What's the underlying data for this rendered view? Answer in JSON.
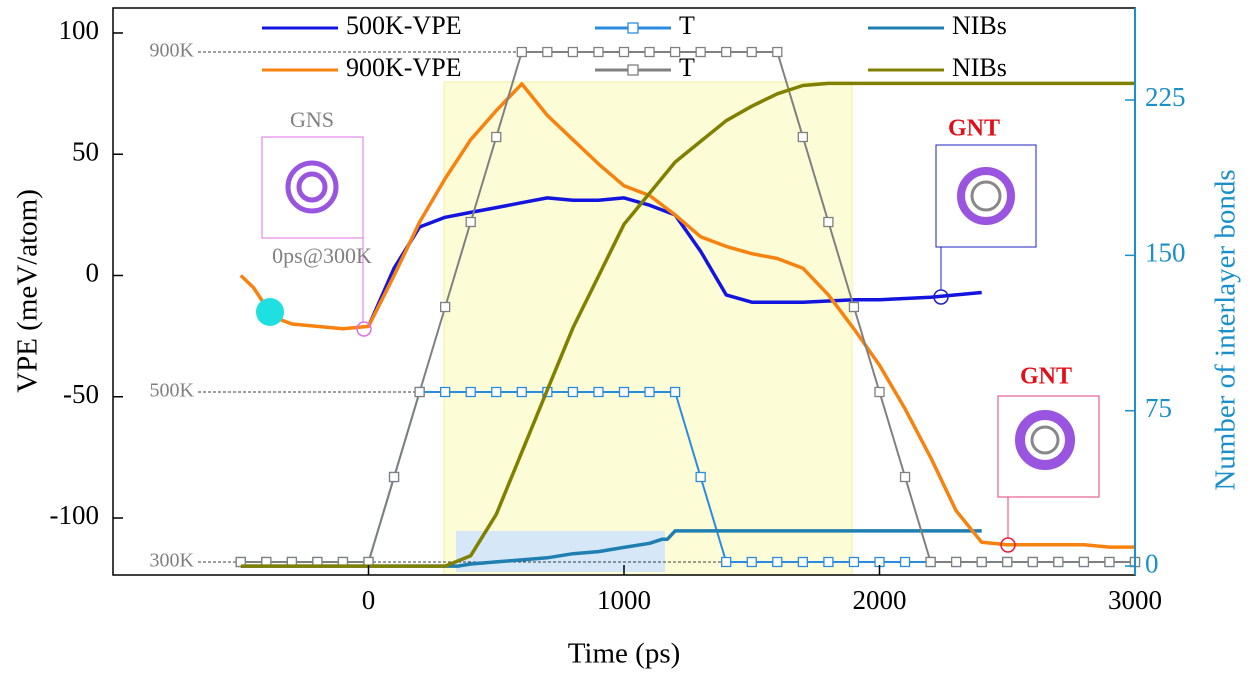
{
  "chart_data": {
    "type": "line",
    "xlabel": "Time (ps)",
    "ylabel": "VPE (meV/atom)",
    "y2label": "Number of interlayer bonds",
    "xlim": [
      -1000,
      3000
    ],
    "xticks": [
      0,
      1000,
      2000,
      3000
    ],
    "ylim": [
      -123.5,
      110.3
    ],
    "yticks": [
      -100,
      -50,
      0,
      50,
      100
    ],
    "y2lim": [
      -4.3,
      269.4
    ],
    "y2ticks": [
      0,
      75,
      150,
      225
    ],
    "y3lim": [
      284.7,
      951.8
    ],
    "y3ticks": [
      {
        "value": 900,
        "label": "900K"
      },
      {
        "value": 500,
        "label": "500K"
      },
      {
        "value": 300,
        "label": "300K"
      }
    ],
    "annotations": [
      "GNS",
      "0ps@300K",
      "GNT",
      "GNT"
    ],
    "series": [
      {
        "name": "500K-VPE",
        "color": "#1414e0",
        "axis": "y",
        "x": [
          0,
          100,
          200,
          300,
          400,
          500,
          600,
          700,
          800,
          900,
          1000,
          1100,
          1200,
          1300,
          1400,
          1500,
          1600,
          1700,
          1800,
          1900,
          2000,
          2100,
          2200,
          2300,
          2400
        ],
        "values": [
          -21,
          3,
          20,
          24,
          26,
          28,
          30,
          32,
          31,
          31,
          32,
          29,
          25,
          10,
          -8,
          -11,
          -11,
          -11,
          -10.5,
          -10,
          -10,
          -9.5,
          -9,
          -8,
          -7
        ]
      },
      {
        "name": "T",
        "color": "#2a8ce0",
        "axis": "y3",
        "markers": true,
        "x": [
          -500,
          -400,
          -300,
          -200,
          -100,
          0,
          100,
          200,
          300,
          400,
          500,
          600,
          700,
          800,
          900,
          1000,
          1100,
          1200,
          1300,
          1400,
          1500,
          1600,
          1700,
          1800,
          1900,
          2000,
          2100,
          2200,
          2300,
          2400,
          2500,
          2600,
          2700,
          2800,
          2900,
          3000
        ],
        "values": [
          300,
          300,
          300,
          300,
          300,
          300,
          400,
          500,
          500,
          500,
          500,
          500,
          500,
          500,
          500,
          500,
          500,
          500,
          400,
          300,
          300,
          300,
          300,
          300,
          300,
          300,
          300,
          300,
          300,
          300,
          300,
          300,
          300,
          300,
          300,
          300
        ]
      },
      {
        "name": "NIBs",
        "color": "#1f7fb0",
        "axis": "y2",
        "x": [
          -500,
          0,
          350,
          400,
          500,
          600,
          700,
          800,
          900,
          1000,
          1100,
          1150,
          1170,
          1200,
          2400
        ],
        "values": [
          0,
          0,
          0,
          1,
          2,
          3,
          4,
          6,
          7,
          9,
          11,
          13,
          13,
          17,
          17
        ]
      },
      {
        "name": "900K-VPE",
        "color": "#f7820f",
        "axis": "y",
        "x": [
          -500,
          -450,
          -400,
          -350,
          -300,
          -200,
          -100,
          0,
          100,
          200,
          300,
          400,
          500,
          600,
          700,
          800,
          900,
          1000,
          1100,
          1200,
          1300,
          1400,
          1500,
          1600,
          1700,
          1800,
          1900,
          2000,
          2100,
          2200,
          2300,
          2400,
          2500,
          2600,
          2700,
          2800,
          2900,
          3000
        ],
        "values": [
          0,
          -5,
          -13,
          -18,
          -20,
          -21,
          -22,
          -21,
          0,
          22,
          40,
          56,
          68,
          79,
          66,
          56,
          46,
          37,
          33,
          25,
          16,
          12,
          9,
          7,
          3,
          -8,
          -22,
          -37,
          -55,
          -75,
          -97,
          -110,
          -111,
          -111,
          -111,
          -111,
          -112,
          -112
        ]
      },
      {
        "name": "T",
        "color": "#808080",
        "axis": "y3",
        "markers": true,
        "x": [
          -500,
          -400,
          -300,
          -200,
          -100,
          0,
          100,
          200,
          300,
          400,
          500,
          600,
          700,
          800,
          900,
          1000,
          1100,
          1200,
          1300,
          1400,
          1500,
          1600,
          1700,
          1800,
          1900,
          2000,
          2100,
          2200,
          2300,
          2400,
          2500,
          2600,
          2700,
          2800,
          2900,
          3000
        ],
        "values": [
          300,
          300,
          300,
          300,
          300,
          300,
          400,
          500,
          600,
          700,
          800,
          900,
          900,
          900,
          900,
          900,
          900,
          900,
          900,
          900,
          900,
          900,
          800,
          700,
          600,
          500,
          400,
          300,
          300,
          300,
          300,
          300,
          300,
          300,
          300,
          300
        ]
      },
      {
        "name": "NIBs",
        "color": "#808000",
        "axis": "y2",
        "x": [
          -500,
          0,
          300,
          400,
          500,
          600,
          700,
          800,
          900,
          1000,
          1100,
          1200,
          1300,
          1400,
          1500,
          1600,
          1700,
          1800,
          2000,
          3000
        ],
        "values": [
          0,
          0,
          0,
          5,
          25,
          55,
          85,
          115,
          140,
          165,
          180,
          195,
          205,
          215,
          222,
          228,
          232,
          233,
          233,
          233
        ]
      }
    ]
  }
}
